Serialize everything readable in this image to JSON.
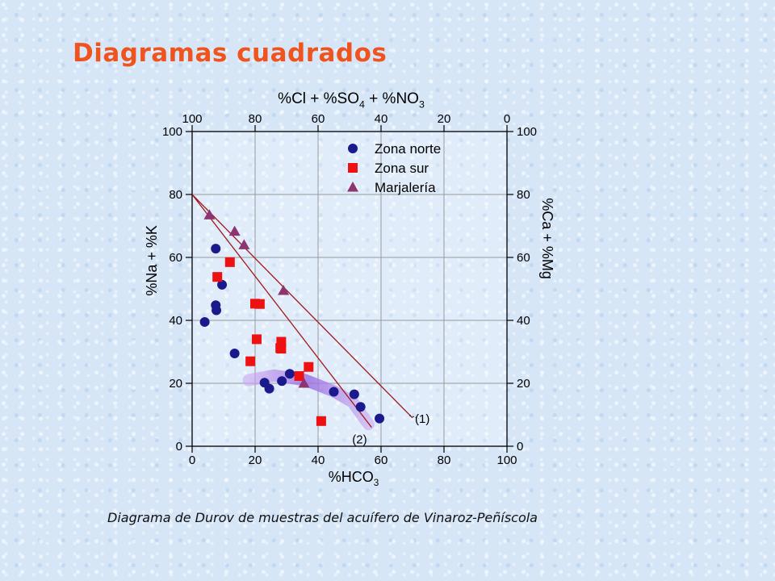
{
  "page": {
    "title": "Diagramas cuadrados",
    "caption": "Diagrama de Durov de muestras del acuífero de Vinaroz-Peñíscola"
  },
  "chart_data": {
    "type": "scatter",
    "title": "",
    "xlabel": "%HCO3",
    "ylabel": "%Na + %K",
    "top_label": "%Cl + %SO4 + %NO3",
    "right_label": "%Ca + %Mg",
    "xlim": [
      0,
      100
    ],
    "ylim": [
      0,
      100
    ],
    "x_ticks": [
      "0",
      "20",
      "40",
      "60",
      "80",
      "100"
    ],
    "y_ticks": [
      "0",
      "20",
      "40",
      "60",
      "80",
      "100"
    ],
    "top_ticks": [
      "100",
      "80",
      "60",
      "40",
      "20",
      "0"
    ],
    "right_ticks": [
      "100",
      "80",
      "60",
      "40",
      "20",
      "0"
    ],
    "grid": true,
    "legend_position": "top-right",
    "series": [
      {
        "name": "Zona norte",
        "marker": "circle",
        "color": "#1a1a8c",
        "points": [
          [
            4,
            39.5
          ],
          [
            7.5,
            62.8
          ],
          [
            7.5,
            44.8
          ],
          [
            7.7,
            43.2
          ],
          [
            9.5,
            51.3
          ],
          [
            13.5,
            29.5
          ],
          [
            23,
            20.2
          ],
          [
            24.5,
            18.3
          ],
          [
            28.5,
            20.7
          ],
          [
            31,
            23
          ],
          [
            45,
            17.3
          ],
          [
            51.5,
            16.5
          ],
          [
            53.5,
            12.5
          ],
          [
            59.5,
            8.8
          ]
        ]
      },
      {
        "name": "Zona sur",
        "marker": "square",
        "color": "#ee1111",
        "points": [
          [
            8,
            53.8
          ],
          [
            12,
            58.5
          ],
          [
            18.5,
            27
          ],
          [
            20,
            45.3
          ],
          [
            20.5,
            34
          ],
          [
            21.5,
            45.2
          ],
          [
            28,
            31.2
          ],
          [
            28.3,
            33.2
          ],
          [
            28.3,
            31
          ],
          [
            34,
            22.3
          ],
          [
            37,
            25.2
          ],
          [
            41,
            8
          ]
        ]
      },
      {
        "name": "Marjalería",
        "marker": "triangle",
        "color": "#8c3570",
        "points": [
          [
            5.5,
            73.5
          ],
          [
            13.5,
            68.3
          ],
          [
            16.5,
            64
          ],
          [
            29,
            49.5
          ],
          [
            35.5,
            20
          ]
        ]
      }
    ],
    "lines": [
      {
        "label": "(1)",
        "from": [
          0,
          80
        ],
        "to": [
          70,
          9
        ]
      },
      {
        "label": "(2)",
        "from": [
          0,
          80
        ],
        "to": [
          57,
          6
        ]
      }
    ],
    "band_color": "#b58ee8",
    "line_color": "#a01818"
  }
}
